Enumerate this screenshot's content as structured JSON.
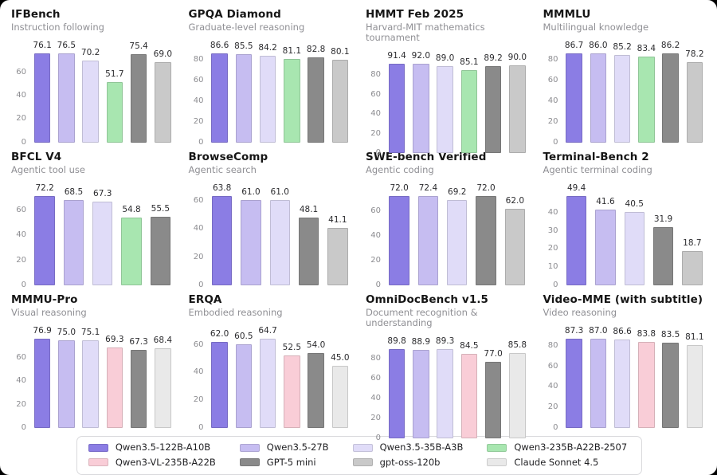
{
  "page": {
    "surface_color": "#ffffff",
    "frame_color": "#000000"
  },
  "colors": {
    "Qwen3.5-122B-A10B": "#8b7de4",
    "Qwen3.5-27B": "#c6bdf1",
    "Qwen3.5-35B-A3B": "#e0dcf8",
    "Qwen3-235B-A22B-2507": "#a8e6b0",
    "Qwen3-VL-235B-A22B": "#f9cdd7",
    "GPT-5 mini": "#8a8a8a",
    "gpt-oss-120b": "#c9c9c9",
    "Claude Sonnet 4.5": "#e9e9e9"
  },
  "legend": {
    "rows": [
      [
        "Qwen3.5-122B-A10B",
        "Qwen3.5-27B",
        "Qwen3.5-35B-A3B",
        "Qwen3-235B-A22B-2507"
      ],
      [
        "Qwen3-VL-235B-A22B",
        "GPT-5 mini",
        "gpt-oss-120b",
        "Claude Sonnet 4.5"
      ]
    ]
  },
  "chart_data": {
    "type": "bar",
    "layout": "4x3 grid of small multiples, legend bottom, no gridlines, no axis spines, value labels above bars",
    "charts": [
      {
        "title": "IFBench",
        "subtitle": "Instruction following",
        "yticks": [
          0,
          20,
          40,
          60
        ],
        "ylim": [
          0,
          80.5
        ],
        "bars": [
          {
            "model": "Qwen3.5-122B-A10B",
            "value": 76.1
          },
          {
            "model": "Qwen3.5-27B",
            "value": 76.5
          },
          {
            "model": "Qwen3.5-35B-A3B",
            "value": 70.2
          },
          {
            "model": "Qwen3-235B-A22B-2507",
            "value": 51.7
          },
          {
            "model": "GPT-5 mini",
            "value": 75.4
          },
          {
            "model": "gpt-oss-120b",
            "value": 69.0
          }
        ]
      },
      {
        "title": "GPQA Diamond",
        "subtitle": "Graduate-level reasoning",
        "yticks": [
          0,
          20,
          40,
          60,
          80
        ],
        "ylim": [
          0,
          91.0
        ],
        "bars": [
          {
            "model": "Qwen3.5-122B-A10B",
            "value": 86.6
          },
          {
            "model": "Qwen3.5-27B",
            "value": 85.5
          },
          {
            "model": "Qwen3.5-35B-A3B",
            "value": 84.2
          },
          {
            "model": "Qwen3-235B-A22B-2507",
            "value": 81.1
          },
          {
            "model": "GPT-5 mini",
            "value": 82.8
          },
          {
            "model": "gpt-oss-120b",
            "value": 80.1
          }
        ]
      },
      {
        "title": "HMMT Feb 2025",
        "subtitle": "Harvard-MIT mathematics tournament",
        "yticks": [
          0,
          20,
          40,
          60,
          80
        ],
        "ylim": [
          0,
          96.6
        ],
        "bars": [
          {
            "model": "Qwen3.5-122B-A10B",
            "value": 91.4
          },
          {
            "model": "Qwen3.5-27B",
            "value": 92.0
          },
          {
            "model": "Qwen3.5-35B-A3B",
            "value": 89.0
          },
          {
            "model": "Qwen3-235B-A22B-2507",
            "value": 85.1
          },
          {
            "model": "GPT-5 mini",
            "value": 89.2
          },
          {
            "model": "gpt-oss-120b",
            "value": 90.0
          }
        ]
      },
      {
        "title": "MMMLU",
        "subtitle": "Multilingual knowledge",
        "yticks": [
          0,
          20,
          40,
          60,
          80
        ],
        "ylim": [
          0,
          91.0
        ],
        "bars": [
          {
            "model": "Qwen3.5-122B-A10B",
            "value": 86.7
          },
          {
            "model": "Qwen3.5-27B",
            "value": 86.0
          },
          {
            "model": "Qwen3.5-35B-A3B",
            "value": 85.2
          },
          {
            "model": "Qwen3-235B-A22B-2507",
            "value": 83.4
          },
          {
            "model": "GPT-5 mini",
            "value": 86.2
          },
          {
            "model": "gpt-oss-120b",
            "value": 78.2
          }
        ]
      },
      {
        "title": "BFCL V4",
        "subtitle": "Agentic tool use",
        "yticks": [
          0,
          20,
          40,
          60
        ],
        "ylim": [
          0,
          75.8
        ],
        "bars": [
          {
            "model": "Qwen3.5-122B-A10B",
            "value": 72.2
          },
          {
            "model": "Qwen3.5-27B",
            "value": 68.5
          },
          {
            "model": "Qwen3.5-35B-A3B",
            "value": 67.3
          },
          {
            "model": "Qwen3-235B-A22B-2507",
            "value": 54.8
          },
          {
            "model": "GPT-5 mini",
            "value": 55.5
          }
        ]
      },
      {
        "title": "BrowseComp",
        "subtitle": "Agentic search",
        "yticks": [
          0,
          20,
          40,
          60
        ],
        "ylim": [
          0,
          67.0
        ],
        "bars": [
          {
            "model": "Qwen3.5-122B-A10B",
            "value": 63.8
          },
          {
            "model": "Qwen3.5-27B",
            "value": 61.0
          },
          {
            "model": "Qwen3.5-35B-A3B",
            "value": 61.0
          },
          {
            "model": "GPT-5 mini",
            "value": 48.1
          },
          {
            "model": "gpt-oss-120b",
            "value": 41.1
          }
        ]
      },
      {
        "title": "SWE-bench Verified",
        "subtitle": "Agentic coding",
        "yticks": [
          0,
          20,
          40,
          60
        ],
        "ylim": [
          0,
          76.0
        ],
        "bars": [
          {
            "model": "Qwen3.5-122B-A10B",
            "value": 72.0
          },
          {
            "model": "Qwen3.5-27B",
            "value": 72.4
          },
          {
            "model": "Qwen3.5-35B-A3B",
            "value": 69.2
          },
          {
            "model": "GPT-5 mini",
            "value": 72.0
          },
          {
            "model": "gpt-oss-120b",
            "value": 62.0
          }
        ]
      },
      {
        "title": "Terminal-Bench 2",
        "subtitle": "Agentic terminal coding",
        "yticks": [
          0,
          10,
          20,
          30,
          40
        ],
        "ylim": [
          0,
          51.9
        ],
        "bars": [
          {
            "model": "Qwen3.5-122B-A10B",
            "value": 49.4
          },
          {
            "model": "Qwen3.5-27B",
            "value": 41.6
          },
          {
            "model": "Qwen3.5-35B-A3B",
            "value": 40.5
          },
          {
            "model": "GPT-5 mini",
            "value": 31.9
          },
          {
            "model": "gpt-oss-120b",
            "value": 18.7
          }
        ]
      },
      {
        "title": "MMMU-Pro",
        "subtitle": "Visual reasoning",
        "yticks": [
          0,
          20,
          40,
          60
        ],
        "ylim": [
          0,
          80.8
        ],
        "bars": [
          {
            "model": "Qwen3.5-122B-A10B",
            "value": 76.9
          },
          {
            "model": "Qwen3.5-27B",
            "value": 75.0
          },
          {
            "model": "Qwen3.5-35B-A3B",
            "value": 75.1
          },
          {
            "model": "Qwen3-VL-235B-A22B",
            "value": 69.3
          },
          {
            "model": "GPT-5 mini",
            "value": 67.3
          },
          {
            "model": "Claude Sonnet 4.5",
            "value": 68.4
          }
        ]
      },
      {
        "title": "ERQA",
        "subtitle": "Embodied reasoning",
        "yticks": [
          0,
          20,
          40,
          60
        ],
        "ylim": [
          0,
          68.0
        ],
        "bars": [
          {
            "model": "Qwen3.5-122B-A10B",
            "value": 62.0
          },
          {
            "model": "Qwen3.5-27B",
            "value": 60.5
          },
          {
            "model": "Qwen3.5-35B-A3B",
            "value": 64.7
          },
          {
            "model": "Qwen3-VL-235B-A22B",
            "value": 52.5
          },
          {
            "model": "GPT-5 mini",
            "value": 54.0
          },
          {
            "model": "Claude Sonnet 4.5",
            "value": 45.0
          }
        ]
      },
      {
        "title": "OmniDocBench v1.5",
        "subtitle": "Document recognition & understanding",
        "yticks": [
          0,
          20,
          40,
          60,
          80
        ],
        "ylim": [
          0,
          94.3
        ],
        "bars": [
          {
            "model": "Qwen3.5-122B-A10B",
            "value": 89.8
          },
          {
            "model": "Qwen3.5-27B",
            "value": 88.9
          },
          {
            "model": "Qwen3.5-35B-A3B",
            "value": 89.3
          },
          {
            "model": "Qwen3-VL-235B-A22B",
            "value": 84.5
          },
          {
            "model": "GPT-5 mini",
            "value": 77.0
          },
          {
            "model": "Claude Sonnet 4.5",
            "value": 85.8
          }
        ]
      },
      {
        "title": "Video-MME (with subtitle)",
        "subtitle": "Video reasoning",
        "yticks": [
          0,
          20,
          40,
          60,
          80
        ],
        "ylim": [
          0,
          91.7
        ],
        "bars": [
          {
            "model": "Qwen3.5-122B-A10B",
            "value": 87.3
          },
          {
            "model": "Qwen3.5-27B",
            "value": 87.0
          },
          {
            "model": "Qwen3.5-35B-A3B",
            "value": 86.6
          },
          {
            "model": "Qwen3-VL-235B-A22B",
            "value": 83.8
          },
          {
            "model": "GPT-5 mini",
            "value": 83.5
          },
          {
            "model": "Claude Sonnet 4.5",
            "value": 81.1
          }
        ]
      }
    ]
  }
}
